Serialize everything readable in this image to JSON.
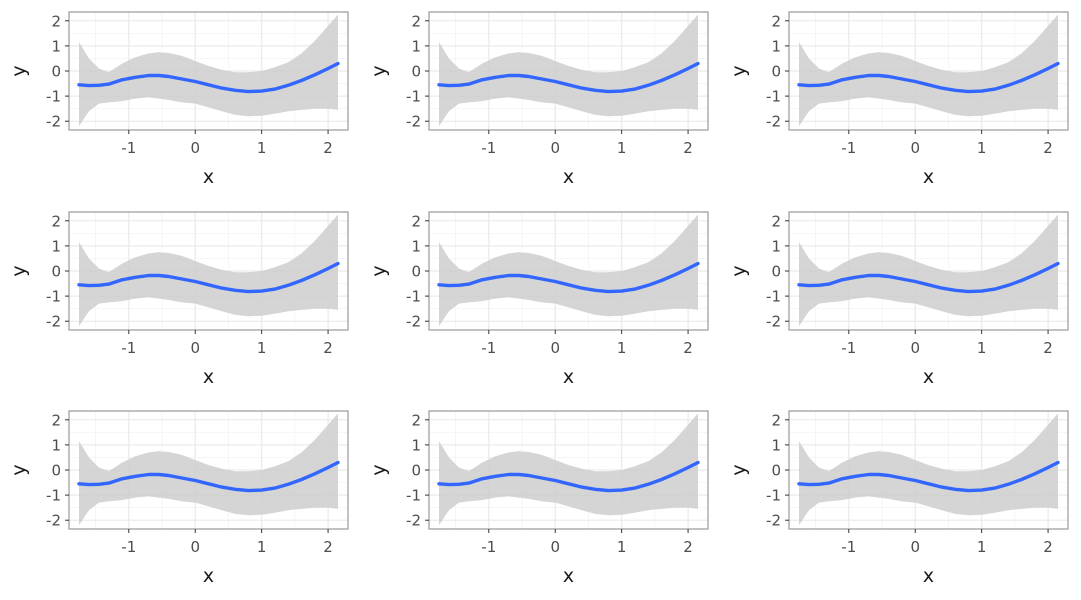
{
  "theme": {
    "line_color": "#3366ff",
    "ribbon_color": "#cccccc",
    "panel_border_color": "#999999",
    "grid_major_color": "#ebebeb",
    "grid_minor_color": "#f4f4f4",
    "text_color": "#4d4d4d",
    "title_color": "#1a1a1a"
  },
  "chart_data": {
    "type": "line",
    "layout": "3x3 grid of identical panels",
    "panel_count": 9,
    "grid": true,
    "xlabel": "x",
    "ylabel": "y",
    "xlim": [
      -1.9,
      2.3
    ],
    "ylim": [
      -2.35,
      2.35
    ],
    "xticks": [
      -1,
      0,
      1,
      2
    ],
    "xtick_labels": [
      "-1",
      "0",
      "1",
      "2"
    ],
    "yticks": [
      -2,
      -1,
      0,
      1,
      2
    ],
    "ytick_labels": [
      "-2",
      "-1",
      "0",
      "1",
      "2"
    ],
    "x": [
      -1.75,
      -1.6,
      -1.45,
      -1.3,
      -1.1,
      -0.9,
      -0.7,
      -0.55,
      -0.4,
      -0.2,
      0.0,
      0.2,
      0.4,
      0.6,
      0.8,
      1.0,
      1.2,
      1.4,
      1.6,
      1.8,
      2.0,
      2.15
    ],
    "y": [
      -0.55,
      -0.58,
      -0.57,
      -0.52,
      -0.35,
      -0.25,
      -0.18,
      -0.18,
      -0.22,
      -0.32,
      -0.42,
      -0.55,
      -0.68,
      -0.77,
      -0.82,
      -0.8,
      -0.72,
      -0.57,
      -0.38,
      -0.15,
      0.1,
      0.3
    ],
    "lower": [
      -2.2,
      -1.6,
      -1.3,
      -1.25,
      -1.2,
      -1.1,
      -1.05,
      -1.1,
      -1.15,
      -1.25,
      -1.3,
      -1.45,
      -1.6,
      -1.75,
      -1.8,
      -1.78,
      -1.7,
      -1.6,
      -1.55,
      -1.5,
      -1.5,
      -1.55
    ],
    "upper": [
      1.15,
      0.5,
      0.1,
      -0.05,
      0.3,
      0.55,
      0.7,
      0.75,
      0.72,
      0.6,
      0.4,
      0.2,
      0.05,
      -0.05,
      -0.05,
      0.0,
      0.15,
      0.35,
      0.7,
      1.2,
      1.8,
      2.25
    ]
  }
}
